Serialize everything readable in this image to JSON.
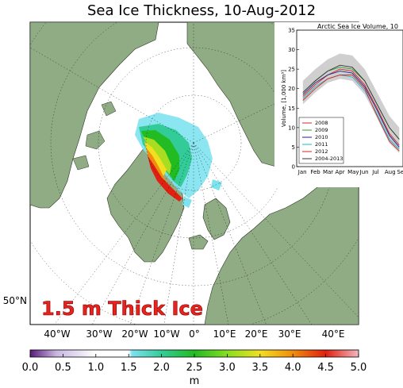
{
  "title": "Sea Ice Thickness, 10-Aug-2012",
  "annotation": "1.5 m Thick Ice",
  "map": {
    "lat_label": "50°N",
    "lon_labels": [
      "40°W",
      "30°W",
      "20°W",
      "10°W",
      "0°",
      "10°E",
      "20°E",
      "30°E",
      "40°E"
    ],
    "colors": {
      "land": "#8fac84",
      "ocean": "#ffffff",
      "annotation": "#e8221c"
    }
  },
  "colorbar": {
    "ticks": [
      "0.0",
      "0.5",
      "1.0",
      "1.5",
      "2.0",
      "2.5",
      "3.0",
      "3.5",
      "4.0",
      "4.5",
      "5.0"
    ],
    "unit": "m",
    "range": [
      0.0,
      5.0
    ]
  },
  "inset": {
    "title": "Arctic Sea Ice Volume, 10",
    "ylabel": "Volume, [1,000 km³]",
    "yticks": [
      "0",
      "5",
      "10",
      "15",
      "20",
      "25",
      "30",
      "35"
    ],
    "months": [
      "Jan",
      "Feb",
      "Mar",
      "Apr",
      "May",
      "Jun",
      "Jul",
      "Aug",
      "Se"
    ],
    "chart_data": {
      "type": "line",
      "ylim": [
        0,
        35
      ],
      "x": [
        0.5,
        1.5,
        2.5,
        3.5,
        4.5,
        5.5,
        6.5,
        7.5,
        8.3
      ],
      "series": [
        {
          "name": "2008",
          "color": "#d62728",
          "values": [
            18,
            21,
            23.5,
            25,
            24.5,
            21,
            15,
            8.5,
            5.5
          ]
        },
        {
          "name": "2009",
          "color": "#2ca02c",
          "values": [
            19,
            22,
            24.5,
            25.5,
            25,
            22,
            16,
            10,
            7
          ]
        },
        {
          "name": "2010",
          "color": "#1f1f8f",
          "values": [
            18.5,
            21.5,
            23.5,
            24.5,
            24,
            20.5,
            14.5,
            8,
            5
          ]
        },
        {
          "name": "2011",
          "color": "#17becf",
          "values": [
            17.5,
            20.5,
            22.5,
            23.5,
            23,
            19.5,
            13.5,
            7,
            4.5
          ]
        },
        {
          "name": "2012",
          "color": "#d62728",
          "values": [
            17,
            20,
            22.5,
            23.5,
            23.5,
            20,
            13,
            6.5,
            4
          ]
        },
        {
          "name": "2004-2013",
          "color": "#333333",
          "values": [
            19,
            22,
            24.5,
            26,
            25.5,
            22,
            16,
            10,
            7
          ]
        }
      ],
      "band_upper": [
        22,
        25,
        27.5,
        29,
        28.5,
        25,
        19,
        13,
        10
      ],
      "band_lower": [
        16,
        19,
        21.5,
        22.5,
        22,
        18.5,
        12.5,
        6,
        3.5
      ]
    }
  }
}
